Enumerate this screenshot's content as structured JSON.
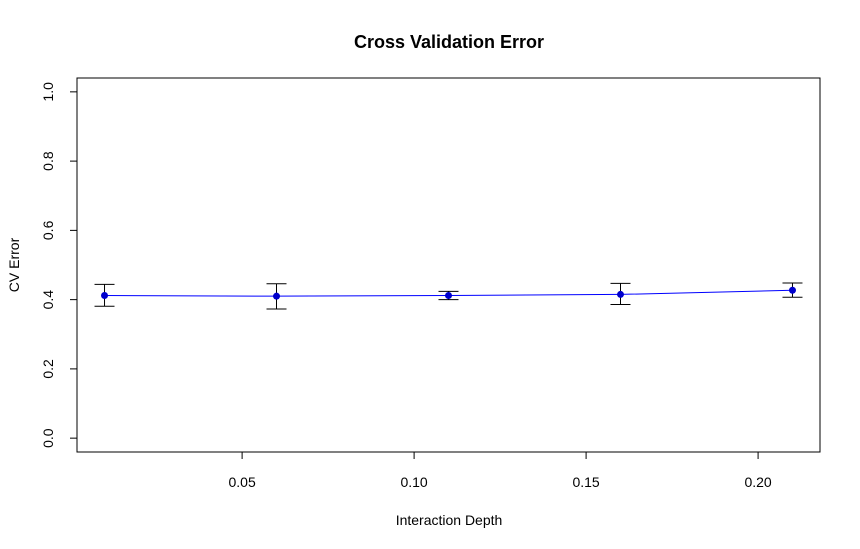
{
  "chart_data": {
    "type": "line",
    "title": "Cross Validation Error",
    "xlabel": "Interaction Depth",
    "ylabel": "CV Error",
    "xlim": [
      0.002,
      0.218
    ],
    "ylim": [
      -0.04,
      1.04
    ],
    "x_ticks": [
      0.05,
      0.1,
      0.15,
      0.2
    ],
    "x_tick_labels": [
      "0.05",
      "0.10",
      "0.15",
      "0.20"
    ],
    "y_ticks": [
      0.0,
      0.2,
      0.4,
      0.6,
      0.8,
      1.0
    ],
    "y_tick_labels": [
      "0.0",
      "0.2",
      "0.4",
      "0.6",
      "0.8",
      "1.0"
    ],
    "series": [
      {
        "x": [
          0.01,
          0.06,
          0.11,
          0.16,
          0.21
        ],
        "y": [
          0.412,
          0.41,
          0.412,
          0.415,
          0.427
        ],
        "error_low": [
          0.381,
          0.373,
          0.4,
          0.386,
          0.407
        ],
        "error_high": [
          0.444,
          0.446,
          0.424,
          0.447,
          0.448
        ]
      }
    ],
    "grid": false,
    "colors": {
      "line": "#0000ff",
      "points": "#0000cd",
      "error_bars": "#000000"
    }
  }
}
